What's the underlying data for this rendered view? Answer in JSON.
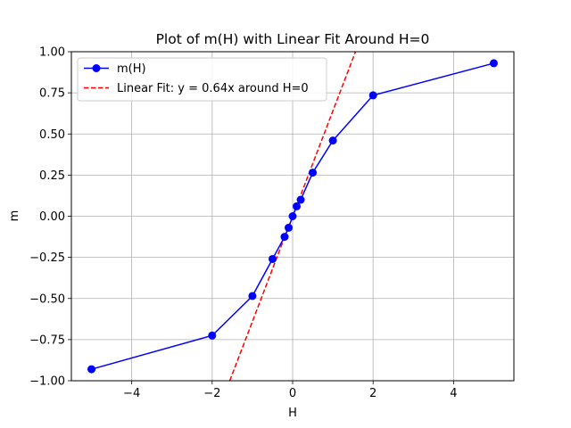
{
  "chart_data": {
    "type": "line",
    "title": "Plot of m(H) with Linear Fit Around H=0",
    "xlabel": "H",
    "ylabel": "m",
    "xlim": [
      -5.5,
      5.5
    ],
    "ylim": [
      -1.0,
      1.0
    ],
    "xticks": [
      -4,
      -2,
      0,
      2,
      4
    ],
    "xtick_labels": [
      "−4",
      "−2",
      "0",
      "2",
      "4"
    ],
    "yticks": [
      -1.0,
      -0.75,
      -0.5,
      -0.25,
      0.0,
      0.25,
      0.5,
      0.75,
      1.0
    ],
    "ytick_labels": [
      "−1.00",
      "−0.75",
      "−0.50",
      "−0.25",
      "0.00",
      "0.25",
      "0.50",
      "0.75",
      "1.00"
    ],
    "grid": true,
    "legend_position": "top-left",
    "series": [
      {
        "name": "m(H)",
        "style": "line-with-markers",
        "color": "#0000ff",
        "x": [
          -5,
          -2,
          -1,
          -0.5,
          -0.2,
          -0.1,
          0,
          0.1,
          0.2,
          0.5,
          1,
          2,
          5
        ],
        "y": [
          -0.93,
          -0.725,
          -0.485,
          -0.26,
          -0.125,
          -0.07,
          0.0,
          0.06,
          0.1,
          0.265,
          0.46,
          0.735,
          0.93
        ]
      },
      {
        "name": "Linear Fit: y = 0.64x around H=0",
        "style": "dashed",
        "color": "#ff0000",
        "slope": 0.64,
        "x": [
          -1.5625,
          1.5625
        ],
        "y": [
          -1.0,
          1.0
        ]
      }
    ]
  }
}
